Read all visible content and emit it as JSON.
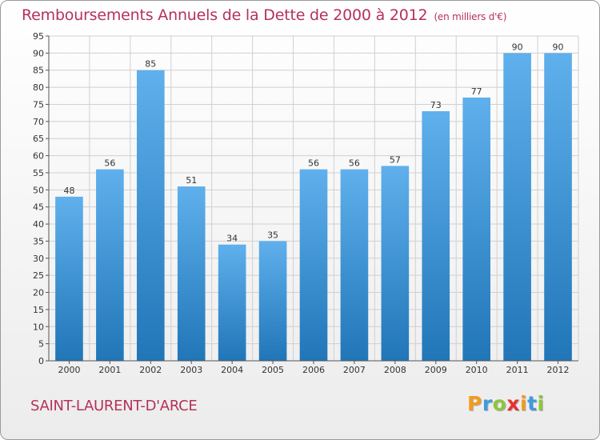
{
  "title": "Remboursements Annuels de la Dette de 2000 à 2012",
  "subtitle": "(en milliers d'€)",
  "commune": "SAINT-LAURENT-D'ARCE",
  "logo": {
    "letters": [
      "P",
      "r",
      "o",
      "x",
      "i",
      "t",
      "i"
    ],
    "colors": [
      "#f39a1e",
      "#3d9be0",
      "#8dc63f",
      "#e8312f",
      "#f39a1e",
      "#3d9be0",
      "#8dc63f"
    ]
  },
  "colors": {
    "title": "#b5325a",
    "bar_light": "#5fb0ec",
    "bar_dark": "#2176b8",
    "grid": "#d0d0d0",
    "axis": "#555555",
    "label": "#333333"
  },
  "chart_data": {
    "type": "bar",
    "title": "Remboursements Annuels de la Dette de 2000 à 2012",
    "xlabel": "",
    "ylabel": "",
    "categories": [
      "2000",
      "2001",
      "2002",
      "2003",
      "2004",
      "2005",
      "2006",
      "2007",
      "2008",
      "2009",
      "2010",
      "2011",
      "2012"
    ],
    "values": [
      48,
      56,
      85,
      51,
      34,
      35,
      56,
      56,
      57,
      73,
      77,
      90,
      90
    ],
    "ylim": [
      0,
      95
    ],
    "yticks": [
      0,
      5,
      10,
      15,
      20,
      25,
      30,
      35,
      40,
      45,
      50,
      55,
      60,
      65,
      70,
      75,
      80,
      85,
      90,
      95
    ],
    "grid": true,
    "data_labels": true
  }
}
